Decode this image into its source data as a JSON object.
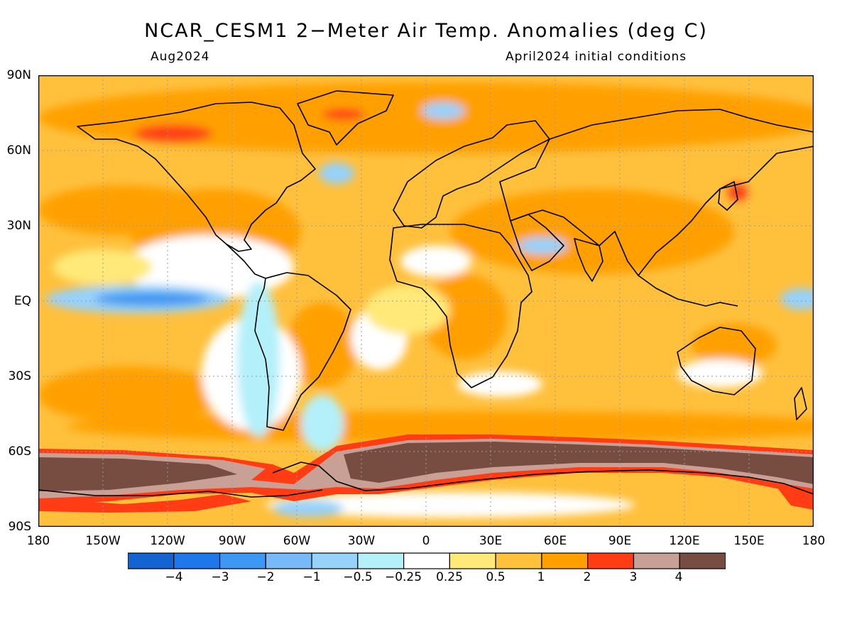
{
  "title": "NCAR_CESM1 2−Meter Air Temp. Anomalies (deg C)",
  "valid_month": "Aug2024",
  "init_label": "April2024 initial conditions",
  "lat_labels": [
    "90N",
    "60N",
    "30N",
    "EQ",
    "30S",
    "60S",
    "90S"
  ],
  "lon_labels": [
    "180",
    "150W",
    "120W",
    "90W",
    "60W",
    "30W",
    "0",
    "30E",
    "60E",
    "90E",
    "120E",
    "150E",
    "180"
  ],
  "legend": {
    "labels": [
      "−4",
      "−3",
      "−2",
      "−1",
      "−0.5",
      "−0.25",
      "0.25",
      "0.5",
      "1",
      "2",
      "3",
      "4"
    ],
    "colors": [
      "#1463d2",
      "#1f78eb",
      "#3c97f5",
      "#78b9fa",
      "#96d2fa",
      "#b4f0fa",
      "#ffffff",
      "#ffe978",
      "#ffc03c",
      "#ffa000",
      "#ff3c14",
      "#c8a096",
      "#784d41"
    ]
  },
  "map_features": [
    "continent-outlines",
    "anomaly-shading",
    "dotted-graticule"
  ]
}
